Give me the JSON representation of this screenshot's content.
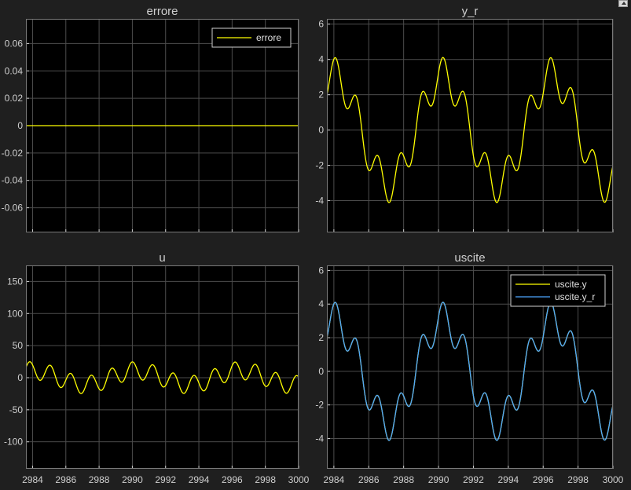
{
  "figure": {
    "background": "#1f1f1f",
    "axes_background": "#000000",
    "text_color": "#cfcfcf",
    "grid_color": "#4d4d4d"
  },
  "chart_data": [
    {
      "type": "line",
      "title": "errore",
      "xlim": [
        2983.6,
        3000
      ],
      "ylim": [
        -0.078,
        0.078
      ],
      "yticks": [
        -0.06,
        -0.04,
        -0.02,
        0,
        0.02,
        0.04,
        0.06
      ],
      "ytick_labels": [
        "-0.06",
        "-0.04",
        "-0.02",
        "0",
        "0.02",
        "0.04",
        "0.06"
      ],
      "xticks": [
        2984,
        2986,
        2988,
        2990,
        2992,
        2994,
        2996,
        2998,
        3000
      ],
      "xtick_labels": [
        "2984",
        "2986",
        "2988",
        "2990",
        "2992",
        "2994",
        "2996",
        "2998",
        "3000"
      ],
      "show_xtick_labels": false,
      "grid": true,
      "legend": "top-right",
      "series": [
        {
          "name": "errore",
          "color": "#ffff00",
          "signal": "error",
          "constant": 0
        }
      ]
    },
    {
      "type": "line",
      "title": "y_r",
      "xlim": [
        2983.6,
        3000
      ],
      "ylim": [
        -5.8,
        6.3
      ],
      "yticks": [
        -4,
        -2,
        0,
        2,
        4,
        6
      ],
      "ytick_labels": [
        "-4",
        "-2",
        "0",
        "2",
        "4",
        "6"
      ],
      "xticks": [
        2984,
        2986,
        2988,
        2990,
        2992,
        2994,
        2996,
        2998,
        3000
      ],
      "xtick_labels": [
        "2984",
        "2986",
        "2988",
        "2990",
        "2992",
        "2994",
        "2996",
        "2998",
        "3000"
      ],
      "show_xtick_labels": false,
      "grid": true,
      "legend": null,
      "series": [
        {
          "color": "#ffff00",
          "signal": "y"
        }
      ]
    },
    {
      "type": "line",
      "title": "u",
      "xlim": [
        2983.6,
        3000
      ],
      "ylim": [
        -142,
        175
      ],
      "yticks": [
        -100,
        -50,
        0,
        50,
        100,
        150
      ],
      "ytick_labels": [
        "-100",
        "-50",
        "0",
        "50",
        "100",
        "150"
      ],
      "xticks": [
        2984,
        2986,
        2988,
        2990,
        2992,
        2994,
        2996,
        2998,
        3000
      ],
      "xtick_labels": [
        "2984",
        "2986",
        "2988",
        "2990",
        "2992",
        "2994",
        "2996",
        "2998",
        "3000"
      ],
      "show_xtick_labels": true,
      "grid": true,
      "legend": null,
      "series": [
        {
          "color": "#ffff00",
          "signal": "u"
        }
      ]
    },
    {
      "type": "line",
      "title": "uscite",
      "xlim": [
        2983.6,
        3000
      ],
      "ylim": [
        -5.8,
        6.3
      ],
      "yticks": [
        -4,
        -2,
        0,
        2,
        4,
        6
      ],
      "ytick_labels": [
        "-4",
        "-2",
        "0",
        "2",
        "4",
        "6"
      ],
      "xticks": [
        2984,
        2986,
        2988,
        2990,
        2992,
        2994,
        2996,
        2998,
        3000
      ],
      "xtick_labels": [
        "2984",
        "2986",
        "2988",
        "2990",
        "2992",
        "2994",
        "2996",
        "2998",
        "3000"
      ],
      "show_xtick_labels": true,
      "grid": true,
      "legend": "top-right",
      "series": [
        {
          "name": "uscite.y",
          "color": "#ffff00",
          "signal": "y"
        },
        {
          "name": "uscite.y_r",
          "color": "#4da6ff",
          "signal": "y"
        }
      ]
    }
  ],
  "signals": {
    "y": {
      "components": [
        {
          "amplitude": 3.05,
          "frequency_hz": 0.16,
          "phase_rad": -1.2
        },
        {
          "amplitude": 1.06,
          "frequency_hz": 0.81,
          "phase_rad": 0.9
        }
      ]
    },
    "u": {
      "components": [
        {
          "amplitude": 11.0,
          "frequency_hz": 0.16,
          "phase_rad": -1.2
        },
        {
          "amplitude": 14.0,
          "frequency_hz": 0.81,
          "phase_rad": 2.2
        }
      ]
    },
    "error": {
      "components": []
    }
  }
}
